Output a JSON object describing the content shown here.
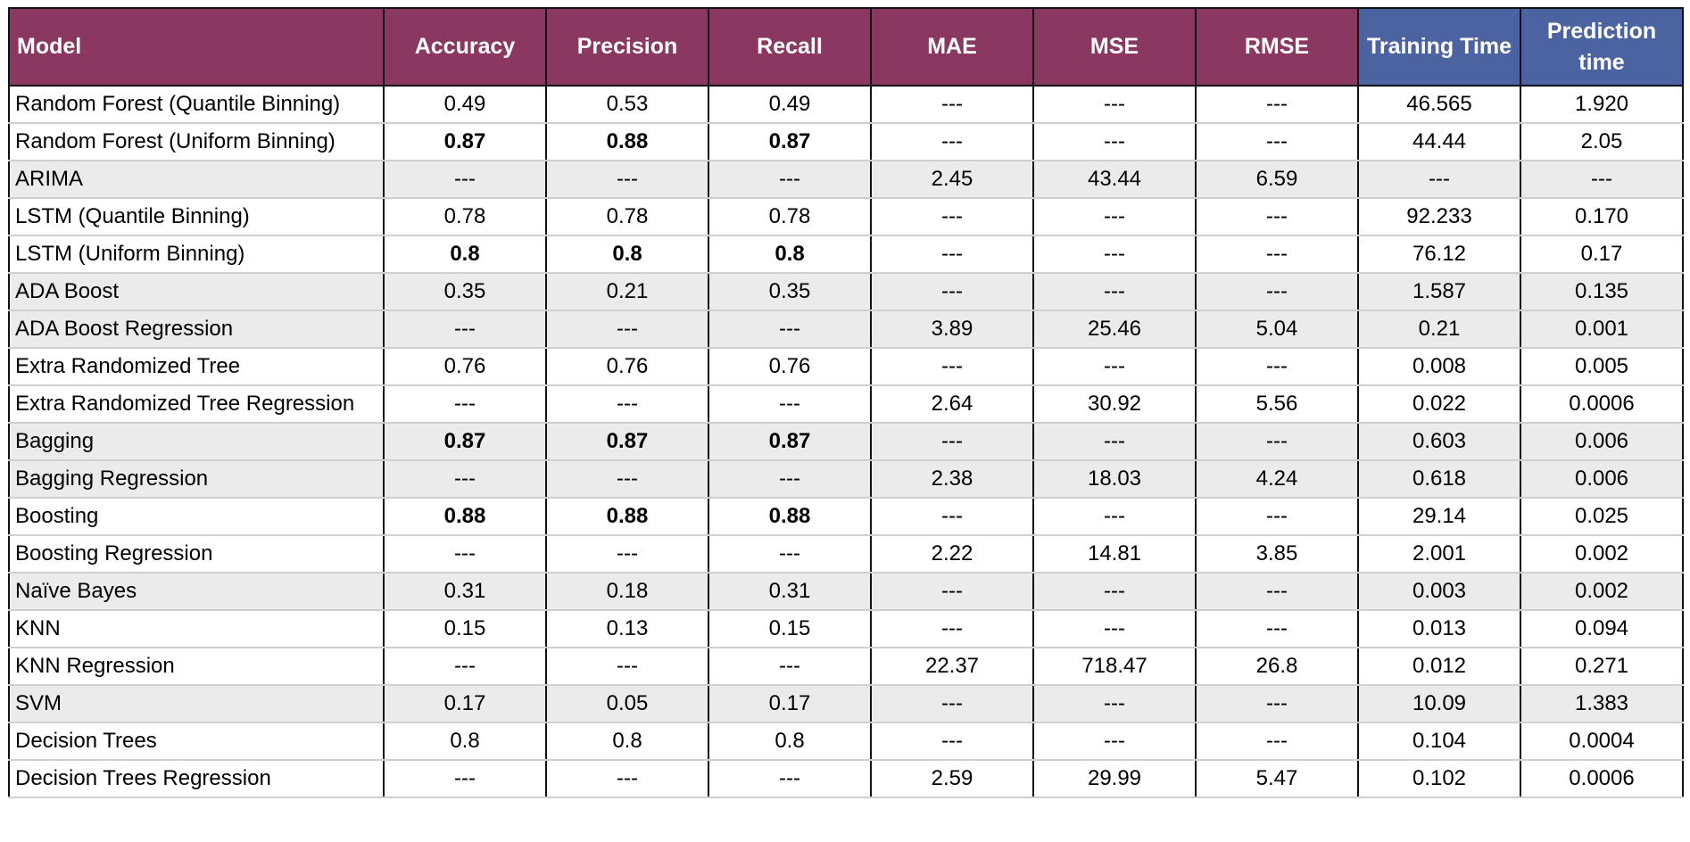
{
  "table": {
    "headers": {
      "model": "Model",
      "accuracy": "Accuracy",
      "precision": "Precision",
      "recall": "Recall",
      "mae": "MAE",
      "mse": "MSE",
      "rmse": "RMSE",
      "training_time": "Training Time",
      "prediction_time": "Prediction time"
    },
    "header_colors": {
      "metric_header": "#8a3862",
      "timing_header": "#4b63a0"
    },
    "rows": [
      {
        "model": "Random Forest (Quantile Binning)",
        "accuracy": "0.49",
        "precision": "0.53",
        "recall": "0.49",
        "mae": "---",
        "mse": "---",
        "rmse": "---",
        "training_time": "46.565",
        "prediction_time": "1.920",
        "bold": false,
        "shaded": false
      },
      {
        "model": "Random Forest (Uniform Binning)",
        "accuracy": "0.87",
        "precision": "0.88",
        "recall": "0.87",
        "mae": "---",
        "mse": "---",
        "rmse": "---",
        "training_time": "44.44",
        "prediction_time": "2.05",
        "bold": true,
        "shaded": false
      },
      {
        "model": "ARIMA",
        "accuracy": "---",
        "precision": "---",
        "recall": "---",
        "mae": "2.45",
        "mse": "43.44",
        "rmse": "6.59",
        "training_time": "---",
        "prediction_time": "---",
        "bold": false,
        "shaded": true
      },
      {
        "model": "LSTM (Quantile Binning)",
        "accuracy": "0.78",
        "precision": "0.78",
        "recall": "0.78",
        "mae": "---",
        "mse": "---",
        "rmse": "---",
        "training_time": "92.233",
        "prediction_time": "0.170",
        "bold": false,
        "shaded": false
      },
      {
        "model": "LSTM (Uniform Binning)",
        "accuracy": "0.8",
        "precision": "0.8",
        "recall": "0.8",
        "mae": "---",
        "mse": "---",
        "rmse": "---",
        "training_time": "76.12",
        "prediction_time": "0.17",
        "bold": true,
        "shaded": false
      },
      {
        "model": "ADA Boost",
        "accuracy": "0.35",
        "precision": "0.21",
        "recall": "0.35",
        "mae": "---",
        "mse": "---",
        "rmse": "---",
        "training_time": "1.587",
        "prediction_time": "0.135",
        "bold": false,
        "shaded": true
      },
      {
        "model": "ADA Boost Regression",
        "accuracy": "---",
        "precision": "---",
        "recall": "---",
        "mae": "3.89",
        "mse": "25.46",
        "rmse": "5.04",
        "training_time": "0.21",
        "prediction_time": "0.001",
        "bold": false,
        "shaded": true
      },
      {
        "model": "Extra Randomized Tree",
        "accuracy": "0.76",
        "precision": "0.76",
        "recall": "0.76",
        "mae": "---",
        "mse": "---",
        "rmse": "---",
        "training_time": "0.008",
        "prediction_time": "0.005",
        "bold": false,
        "shaded": false
      },
      {
        "model": "Extra Randomized Tree Regression",
        "accuracy": "---",
        "precision": "---",
        "recall": "---",
        "mae": "2.64",
        "mse": "30.92",
        "rmse": "5.56",
        "training_time": "0.022",
        "prediction_time": "0.0006",
        "bold": false,
        "shaded": false
      },
      {
        "model": "Bagging",
        "accuracy": "0.87",
        "precision": "0.87",
        "recall": "0.87",
        "mae": "---",
        "mse": "---",
        "rmse": "---",
        "training_time": "0.603",
        "prediction_time": "0.006",
        "bold": true,
        "shaded": true
      },
      {
        "model": "Bagging Regression",
        "accuracy": "---",
        "precision": "---",
        "recall": "---",
        "mae": "2.38",
        "mse": "18.03",
        "rmse": "4.24",
        "training_time": "0.618",
        "prediction_time": "0.006",
        "bold": false,
        "shaded": true
      },
      {
        "model": "Boosting",
        "accuracy": "0.88",
        "precision": "0.88",
        "recall": "0.88",
        "mae": "---",
        "mse": "---",
        "rmse": "---",
        "training_time": "29.14",
        "prediction_time": "0.025",
        "bold": true,
        "shaded": false
      },
      {
        "model": "Boosting Regression",
        "accuracy": "---",
        "precision": "---",
        "recall": "---",
        "mae": "2.22",
        "mse": "14.81",
        "rmse": "3.85",
        "training_time": "2.001",
        "prediction_time": "0.002",
        "bold": false,
        "shaded": false
      },
      {
        "model": "Naïve Bayes",
        "accuracy": "0.31",
        "precision": "0.18",
        "recall": "0.31",
        "mae": "---",
        "mse": "---",
        "rmse": "---",
        "training_time": "0.003",
        "prediction_time": "0.002",
        "bold": false,
        "shaded": true
      },
      {
        "model": "KNN",
        "accuracy": "0.15",
        "precision": "0.13",
        "recall": "0.15",
        "mae": "---",
        "mse": "---",
        "rmse": "---",
        "training_time": "0.013",
        "prediction_time": "0.094",
        "bold": false,
        "shaded": false
      },
      {
        "model": "KNN Regression",
        "accuracy": "---",
        "precision": "---",
        "recall": "---",
        "mae": "22.37",
        "mse": "718.47",
        "rmse": "26.8",
        "training_time": "0.012",
        "prediction_time": "0.271",
        "bold": false,
        "shaded": false
      },
      {
        "model": "SVM",
        "accuracy": "0.17",
        "precision": "0.05",
        "recall": "0.17",
        "mae": "---",
        "mse": "---",
        "rmse": "---",
        "training_time": "10.09",
        "prediction_time": "1.383",
        "bold": false,
        "shaded": true
      },
      {
        "model": "Decision Trees",
        "accuracy": "0.8",
        "precision": "0.8",
        "recall": "0.8",
        "mae": "---",
        "mse": "---",
        "rmse": "---",
        "training_time": "0.104",
        "prediction_time": "0.0004",
        "bold": false,
        "shaded": false
      },
      {
        "model": "Decision Trees Regression",
        "accuracy": "---",
        "precision": "---",
        "recall": "---",
        "mae": "2.59",
        "mse": "29.99",
        "rmse": "5.47",
        "training_time": "0.102",
        "prediction_time": "0.0006",
        "bold": false,
        "shaded": false
      }
    ]
  }
}
